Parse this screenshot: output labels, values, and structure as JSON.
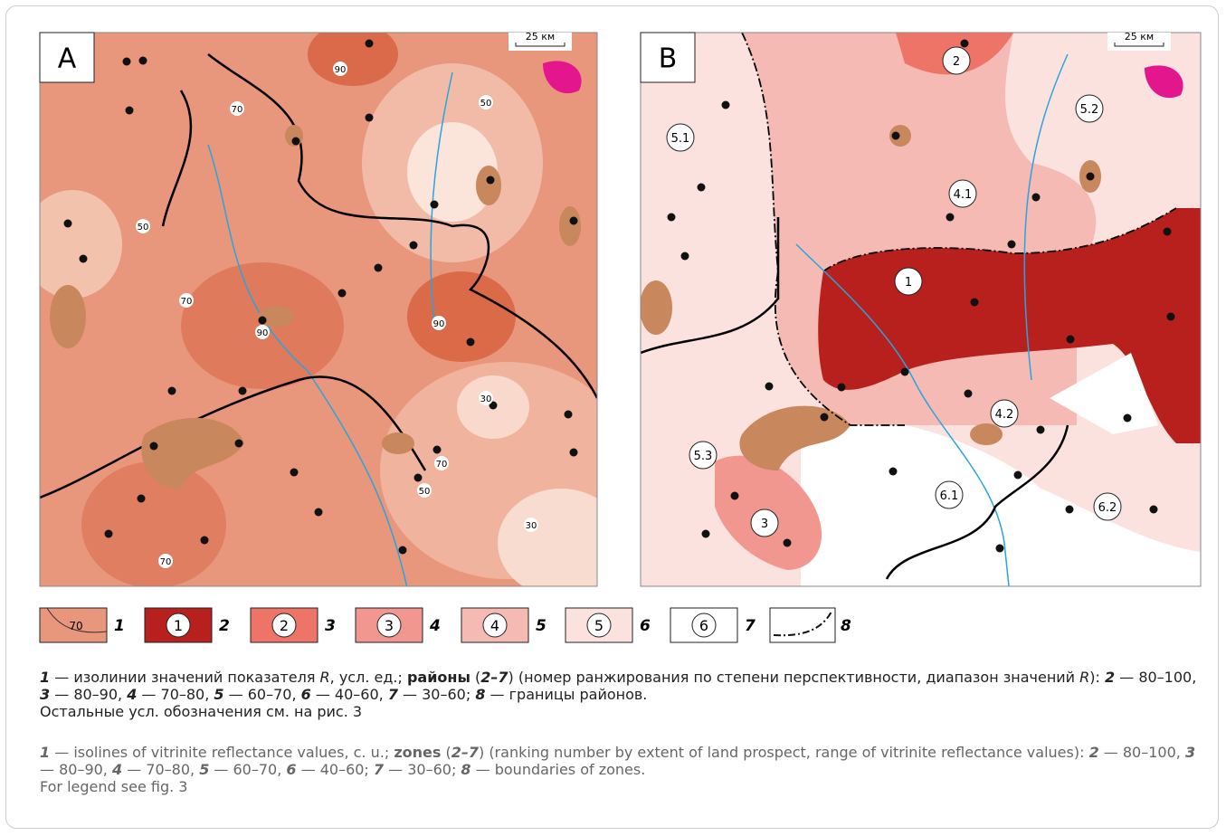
{
  "panels": [
    {
      "label": "A",
      "scale": "25 км",
      "isoline_labels": [
        "90",
        "70",
        "50",
        "50",
        "70",
        "90",
        "90",
        "30",
        "70",
        "50",
        "30",
        "70"
      ]
    },
    {
      "label": "B",
      "scale": "25 км",
      "zone_labels": [
        "2",
        "5.2",
        "5.1",
        "4.1",
        "1",
        "4.2",
        "5.3",
        "6.1",
        "6.2",
        "3"
      ]
    }
  ],
  "legend": [
    {
      "number": "1",
      "sample": "70"
    },
    {
      "number": "2",
      "sample": "1"
    },
    {
      "number": "3",
      "sample": "2"
    },
    {
      "number": "4",
      "sample": "3"
    },
    {
      "number": "5",
      "sample": "4"
    },
    {
      "number": "6",
      "sample": "5"
    },
    {
      "number": "7",
      "sample": "6"
    },
    {
      "number": "8"
    }
  ],
  "caption_ru": {
    "runs": [
      "1",
      " — изолинии значений показателя ",
      "R",
      ", усл. ед.; ",
      "районы",
      " (",
      "2–7",
      ") (номер ранжирования по степени перспективности, диапазон значений ",
      "R",
      "): ",
      "2",
      " — 80–100, ",
      "3",
      " — 80–90, ",
      "4",
      " — 70–80, ",
      "5",
      " — 60–70, ",
      "6",
      " — 40–60, ",
      "7",
      " — 30–60; ",
      "8",
      " — границы районов."
    ],
    "note": "Остальные усл. обозначения см. на рис. 3"
  },
  "caption_en": {
    "runs": [
      "1",
      " — isolines of vitrinite reflectance values, c. u.; ",
      "zones",
      " (",
      "2–7",
      ")  (ranking number by extent of land prospect, range of vitrinite reflectance values): ",
      "2",
      " — 80–100, ",
      "3",
      " — 80–90, ",
      "4",
      " — 70–80, ",
      "5",
      " — 60–70, ",
      "6",
      " — 40–60; ",
      "7",
      " — 30–60; ",
      "8",
      " — boundaries of zones."
    ],
    "note": "For legend see fig. 3"
  }
}
